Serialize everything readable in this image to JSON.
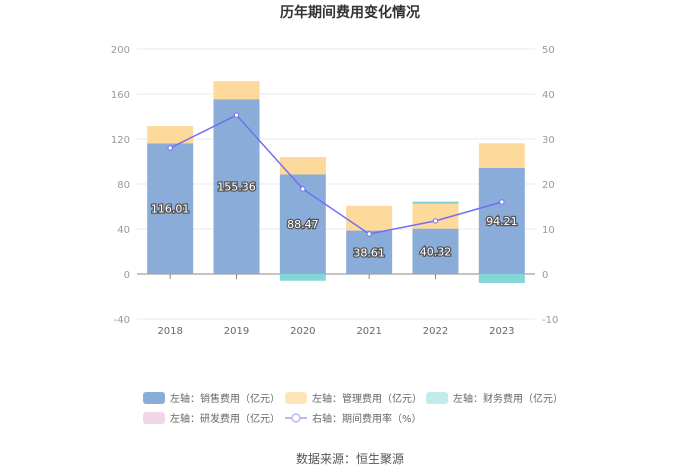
{
  "title": "历年期间费用变化情况",
  "source": "数据来源：恒生聚源",
  "chart_data": {
    "type": "bar",
    "title": "历年期间费用变化情况",
    "categories": [
      "2018",
      "2019",
      "2020",
      "2021",
      "2022",
      "2023"
    ],
    "ylim_left": [
      -40,
      200
    ],
    "yticks_left": [
      "-40",
      "0",
      "40",
      "80",
      "120",
      "160",
      "200"
    ],
    "ylim_right": [
      -10,
      50
    ],
    "yticks_right": [
      "-10",
      "0",
      "10",
      "20",
      "30",
      "40",
      "50"
    ],
    "series": [
      {
        "name": "左轴：销售费用（亿元）",
        "color": "#8aacd9",
        "values": [
          116.01,
          155.36,
          88.47,
          38.61,
          40.32,
          94.21
        ],
        "labels": [
          "116.01",
          "155.36",
          "88.47",
          "38.61",
          "40.32",
          "94.21"
        ]
      },
      {
        "name": "左轴：管理费用（亿元）",
        "color": "#fdd99b",
        "values": [
          15.5,
          16,
          15.5,
          22,
          22,
          22
        ]
      },
      {
        "name": "左轴：财务费用（亿元）",
        "color": "#84d5d6",
        "values": [
          0,
          0,
          -6,
          0,
          2,
          -8
        ]
      },
      {
        "name": "左轴：研发费用（亿元）",
        "color": "#f1d6ea",
        "values": [
          0,
          0,
          0,
          0,
          0,
          0
        ]
      },
      {
        "name": "右轴：期间费用率（%）",
        "color": "#6f6ff2",
        "type": "line",
        "values": [
          28,
          35.3,
          18.9,
          8.9,
          11.8,
          16
        ]
      }
    ]
  }
}
